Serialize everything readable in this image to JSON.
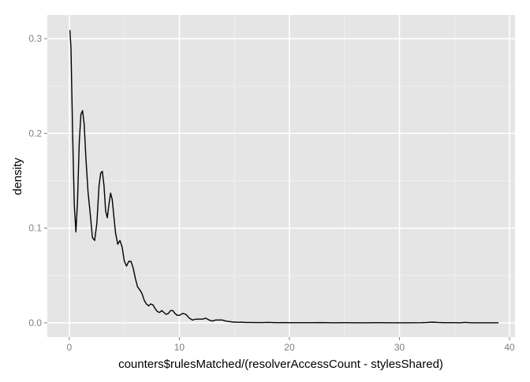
{
  "chart_data": {
    "type": "line",
    "title": "",
    "xlabel": "counters$rulesMatched/(resolverAccessCount - stylesShared)",
    "ylabel": "density",
    "xlim": [
      -2,
      40.5
    ],
    "ylim": [
      -0.015,
      0.325
    ],
    "x_ticks": [
      0,
      10,
      20,
      30,
      40
    ],
    "x_tick_labels": [
      "0",
      "10",
      "20",
      "30",
      "40"
    ],
    "y_ticks": [
      0.0,
      0.1,
      0.2,
      0.3
    ],
    "y_tick_labels": [
      "0.0",
      "0.1",
      "0.2",
      "0.3"
    ],
    "grid": true,
    "legend": "none",
    "colors": {
      "panel": "#e5e5e5",
      "grid_major": "#ffffff",
      "grid_minor": "#f2f2f2",
      "line": "#000000",
      "tick_text": "#7f7f7f",
      "axis_text": "#000000"
    },
    "series": [
      {
        "x": [
          0.05,
          0.15,
          0.3,
          0.45,
          0.6,
          0.75,
          0.9,
          1.05,
          1.2,
          1.35,
          1.5,
          1.7,
          1.9,
          2.1,
          2.3,
          2.5,
          2.7,
          2.85,
          3.0,
          3.15,
          3.3,
          3.45,
          3.6,
          3.75,
          3.9,
          4.05,
          4.2,
          4.4,
          4.6,
          4.8,
          5.0,
          5.2,
          5.4,
          5.6,
          5.8,
          6.0,
          6.2,
          6.4,
          6.6,
          6.8,
          7.0,
          7.2,
          7.4,
          7.6,
          7.8,
          8.0,
          8.2,
          8.4,
          8.6,
          8.8,
          9.0,
          9.2,
          9.4,
          9.6,
          9.8,
          10.0,
          10.3,
          10.6,
          10.9,
          11.2,
          11.5,
          11.8,
          12.1,
          12.4,
          12.7,
          13.0,
          13.3,
          13.6,
          13.9,
          14.2,
          14.5,
          14.8,
          15.1,
          15.4,
          15.7,
          16.0,
          16.5,
          17.0,
          17.5,
          18.0,
          18.5,
          19.0,
          19.5,
          20.0,
          21.0,
          22.0,
          23.0,
          24.0,
          25.0,
          26.0,
          27.0,
          28.0,
          29.0,
          30.0,
          31.0,
          32.0,
          32.5,
          33.0,
          33.5,
          34.0,
          35.0,
          35.5,
          36.0,
          36.5,
          37.0,
          38.0,
          39.0
        ],
        "y": [
          0.309,
          0.29,
          0.2,
          0.125,
          0.096,
          0.13,
          0.19,
          0.22,
          0.224,
          0.21,
          0.175,
          0.138,
          0.115,
          0.09,
          0.087,
          0.105,
          0.145,
          0.158,
          0.16,
          0.145,
          0.118,
          0.111,
          0.125,
          0.137,
          0.13,
          0.112,
          0.095,
          0.083,
          0.087,
          0.08,
          0.065,
          0.06,
          0.065,
          0.065,
          0.058,
          0.047,
          0.038,
          0.035,
          0.031,
          0.024,
          0.02,
          0.018,
          0.02,
          0.019,
          0.015,
          0.012,
          0.011,
          0.013,
          0.011,
          0.009,
          0.01,
          0.013,
          0.013,
          0.01,
          0.008,
          0.008,
          0.01,
          0.009,
          0.005,
          0.003,
          0.004,
          0.004,
          0.004,
          0.005,
          0.003,
          0.002,
          0.003,
          0.003,
          0.003,
          0.002,
          0.0015,
          0.001,
          0.0008,
          0.0006,
          0.0008,
          0.0004,
          0.0004,
          0.0003,
          0.0003,
          0.0005,
          0.0003,
          0.0002,
          0.0003,
          0.0002,
          0.0002,
          0.0002,
          0.0003,
          0.0001,
          0.0002,
          0.0001,
          0.0001,
          0.0002,
          0.0001,
          0.0001,
          0.0001,
          0.0002,
          0.0004,
          0.0008,
          0.0004,
          0.0002,
          0.0002,
          0.0001,
          0.0005,
          0.0001,
          0.0001,
          0.0001,
          0.0001
        ]
      }
    ]
  }
}
